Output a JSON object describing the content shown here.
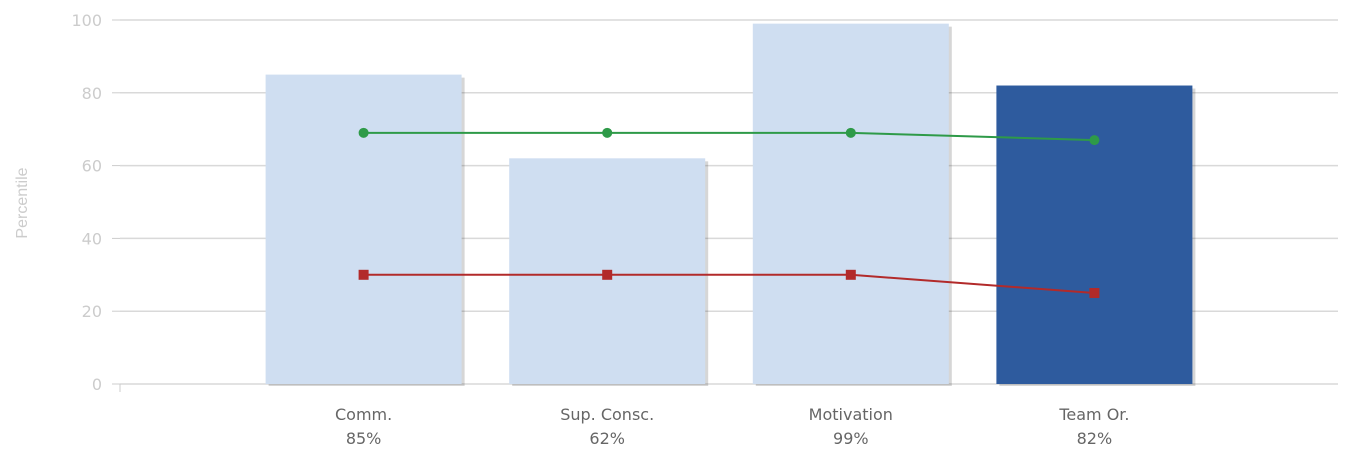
{
  "chart_data": {
    "type": "bar",
    "ylabel": "Percentile",
    "ylim": [
      0,
      100
    ],
    "yticks": [
      0,
      20,
      40,
      60,
      80,
      100
    ],
    "grid": true,
    "categories": [
      "Comm.",
      "Sup. Consc.",
      "Motivation",
      "Team Or."
    ],
    "value_labels": [
      "85%",
      "62%",
      "99%",
      "82%"
    ],
    "values": [
      85,
      62,
      99,
      82
    ],
    "highlight_index": 3,
    "bar_colors": {
      "default": "#cfdef1",
      "highlight": "#2e5b9e"
    },
    "lines": [
      {
        "values": [
          69,
          69,
          69,
          67
        ],
        "color": "#2e9a48",
        "marker": "circle"
      },
      {
        "values": [
          30,
          30,
          30,
          25
        ],
        "color": "#b22a2a",
        "marker": "square"
      }
    ]
  }
}
